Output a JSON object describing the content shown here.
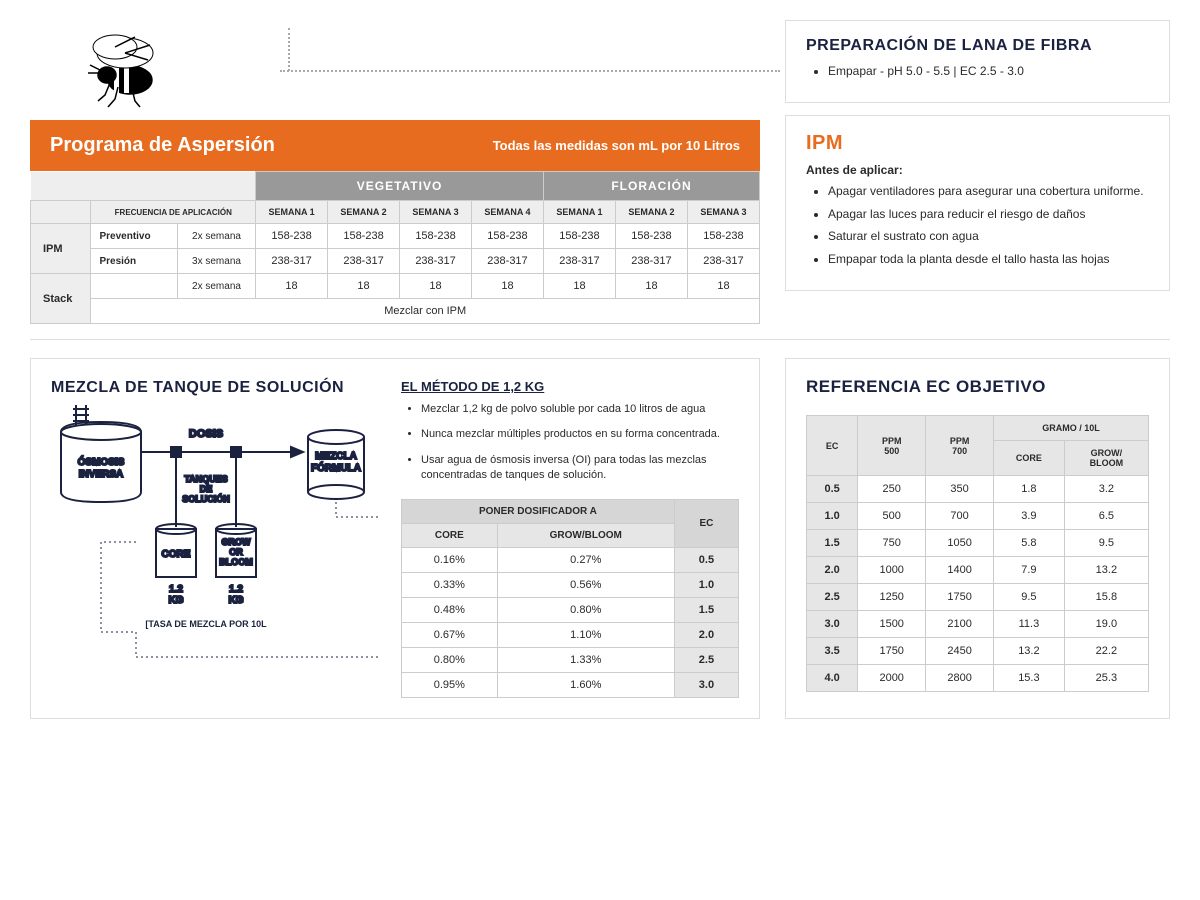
{
  "spray": {
    "title": "Programa de Aspersión",
    "subtitle": "Todas las medidas son mL por 10 Litros",
    "phase1": "VEGETATIVO",
    "phase2": "FLORACIÓN",
    "weeks_v": [
      "SEMANA 1",
      "SEMANA 2",
      "SEMANA 3",
      "SEMANA 4"
    ],
    "weeks_f": [
      "SEMANA 1",
      "SEMANA 2",
      "SEMANA 3"
    ],
    "app_freq": "FRECUENCIA DE APLICACIÓN",
    "ipm_label": "IPM",
    "stack_label": "Stack",
    "rows": {
      "prevent": {
        "label": "Preventivo",
        "freq": "2x semana",
        "vals": [
          "158-238",
          "158-238",
          "158-238",
          "158-238",
          "158-238",
          "158-238",
          "158-238"
        ]
      },
      "presion": {
        "label": "Presión",
        "freq": "3x semana",
        "vals": [
          "238-317",
          "238-317",
          "238-317",
          "238-317",
          "238-317",
          "238-317",
          "238-317"
        ]
      },
      "stack": {
        "label": "",
        "freq": "2x semana",
        "vals": [
          "18",
          "18",
          "18",
          "18",
          "18",
          "18",
          "18"
        ]
      }
    },
    "stack_note": "Mezclar con IPM"
  },
  "fibra": {
    "title": "PREPARACIÓN DE LANA DE FIBRA",
    "item": "Empapar  - pH 5.0 - 5.5  | EC 2.5 - 3.0"
  },
  "ipm": {
    "title": "IPM",
    "sub": "Antes de aplicar:",
    "items": [
      "Apagar ventiladores para asegurar una cobertura uniforme.",
      "Apagar las luces para reducir el riesgo de daños",
      "Saturar el sustrato con agua",
      "Empapar toda la planta desde el tallo hasta las hojas"
    ]
  },
  "mix": {
    "title": "MEZCLA DE TANQUE DE SOLUCIÓN",
    "method_title": "EL MÉTODO DE 1,2 KG",
    "method_items": [
      "Mezclar 1,2 kg de polvo soluble por cada 10 litros de agua",
      "Nunca mezclar múltiples productos en su forma concentrada.",
      "Usar agua de ósmosis inversa (OI)  para todas las mezclas concentradas de tanques de solución."
    ],
    "diagram": {
      "osmosis": "ÓSMOSIS\nINVERSA",
      "dosis": "DOSIS",
      "mezcla": "MEZCLA\nFÓRMULA",
      "tanques": "TANQUES\nDE\nSOLUCIÓN",
      "core": "CORE",
      "growbloom": "GROW\nOR\nBLOOM",
      "kg": "1.2\nKG",
      "rate": "[TASA DE MEZCLA POR 10L"
    },
    "dose_hdr": "PONER DOSIFICADOR A",
    "dose_cols": [
      "CORE",
      "GROW/BLOOM",
      "EC"
    ],
    "dose_rows": [
      [
        "0.16%",
        "0.27%",
        "0.5"
      ],
      [
        "0.33%",
        "0.56%",
        "1.0"
      ],
      [
        "0.48%",
        "0.80%",
        "1.5"
      ],
      [
        "0.67%",
        "1.10%",
        "2.0"
      ],
      [
        "0.80%",
        "1.33%",
        "2.5"
      ],
      [
        "0.95%",
        "1.60%",
        "3.0"
      ]
    ]
  },
  "ec": {
    "title": "REFERENCIA EC OBJETIVO",
    "hdr_ec": "EC",
    "hdr_ppm500": "PPM\n500",
    "hdr_ppm700": "PPM\n700",
    "hdr_gram": "GRAMO / 10L",
    "hdr_core": "CORE",
    "hdr_grow": "GROW/\nBLOOM",
    "rows": [
      [
        "0.5",
        "250",
        "350",
        "1.8",
        "3.2"
      ],
      [
        "1.0",
        "500",
        "700",
        "3.9",
        "6.5"
      ],
      [
        "1.5",
        "750",
        "1050",
        "5.8",
        "9.5"
      ],
      [
        "2.0",
        "1000",
        "1400",
        "7.9",
        "13.2"
      ],
      [
        "2.5",
        "1250",
        "1750",
        "9.5",
        "15.8"
      ],
      [
        "3.0",
        "1500",
        "2100",
        "11.3",
        "19.0"
      ],
      [
        "3.5",
        "1750",
        "2450",
        "13.2",
        "22.2"
      ],
      [
        "4.0",
        "2000",
        "2800",
        "15.3",
        "25.3"
      ]
    ]
  },
  "colors": {
    "orange": "#e86c1f",
    "navy": "#1a2240",
    "grey_hdr": "#999999",
    "grey_cell": "#e6e6e6"
  }
}
